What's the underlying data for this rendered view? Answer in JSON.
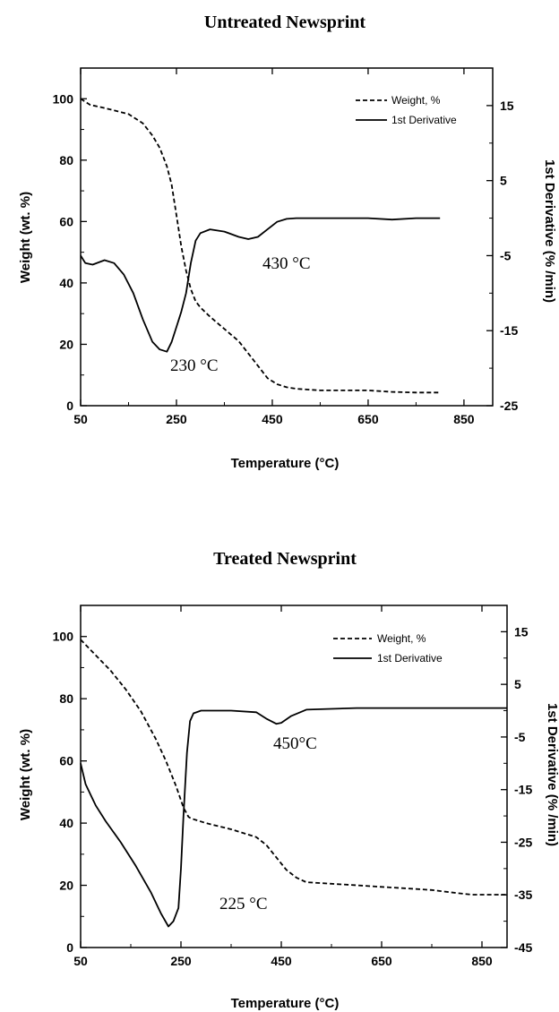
{
  "chart_data": [
    {
      "type": "line",
      "title": "Untreated Newsprint",
      "xlabel": "Temperature (°C)",
      "ylabel": "Weight (wt. %)",
      "y2label": "1st Derivative (% /min)",
      "xlim": [
        50,
        910
      ],
      "ylim": [
        0,
        110
      ],
      "y2lim": [
        -25,
        20
      ],
      "xticks": [
        50,
        250,
        450,
        650,
        850
      ],
      "yticks": [
        0,
        20,
        40,
        60,
        80,
        100
      ],
      "y2ticks": [
        -25,
        -15,
        -5,
        5,
        15
      ],
      "legend_position": "top-right",
      "grid": false,
      "series": [
        {
          "name": "Weight, %",
          "axis": "left",
          "style": "dashed",
          "x": [
            50,
            70,
            100,
            150,
            180,
            200,
            215,
            230,
            240,
            250,
            260,
            270,
            280,
            290,
            300,
            320,
            350,
            380,
            400,
            420,
            440,
            460,
            480,
            500,
            550,
            600,
            650,
            700,
            750,
            800
          ],
          "y": [
            100,
            98,
            97,
            95,
            92,
            88,
            84,
            78,
            72,
            62,
            52,
            44,
            38,
            34,
            32,
            29,
            25,
            21,
            17,
            13,
            9,
            7,
            6,
            5.5,
            5,
            5,
            5,
            4.5,
            4.3,
            4.3
          ]
        },
        {
          "name": "1st Derivative",
          "axis": "right",
          "style": "solid",
          "x": [
            50,
            60,
            75,
            100,
            120,
            140,
            160,
            180,
            200,
            215,
            230,
            240,
            250,
            260,
            270,
            280,
            290,
            300,
            320,
            350,
            380,
            400,
            420,
            440,
            460,
            480,
            500,
            550,
            600,
            650,
            700,
            750,
            800
          ],
          "y": [
            -5,
            -6,
            -6.2,
            -5.6,
            -6,
            -7.5,
            -10,
            -13.5,
            -16.5,
            -17.5,
            -17.8,
            -16.5,
            -14.5,
            -12.5,
            -10,
            -6,
            -3,
            -2,
            -1.5,
            -1.8,
            -2.5,
            -2.8,
            -2.5,
            -1.5,
            -0.5,
            -0.1,
            0,
            0,
            0,
            0,
            -0.2,
            0,
            0
          ]
        }
      ],
      "annotations": [
        "230 °C",
        "430 °C"
      ]
    },
    {
      "type": "line",
      "title": "Treated Newsprint",
      "xlabel": "Temperature (°C)",
      "ylabel": "Weight (wt. %)",
      "y2label": "1st Derivative (% /min)",
      "xlim": [
        50,
        900
      ],
      "ylim": [
        0,
        110
      ],
      "y2lim": [
        -45,
        20
      ],
      "xticks": [
        50,
        250,
        450,
        650,
        850
      ],
      "yticks": [
        0,
        20,
        40,
        60,
        80,
        100
      ],
      "y2ticks": [
        -45,
        -35,
        -25,
        -15,
        -5,
        5,
        15
      ],
      "legend_position": "top-right",
      "grid": false,
      "series": [
        {
          "name": "Weight, %",
          "axis": "left",
          "style": "dashed",
          "x": [
            50,
            80,
            110,
            140,
            170,
            200,
            220,
            240,
            255,
            265,
            270,
            280,
            300,
            350,
            400,
            420,
            440,
            460,
            480,
            500,
            550,
            600,
            650,
            700,
            750,
            800,
            830,
            850,
            880,
            900
          ],
          "y": [
            99,
            94,
            89,
            83,
            76,
            67,
            60,
            52,
            45,
            42,
            41.5,
            41,
            40,
            38,
            35.5,
            33,
            29,
            25,
            22.5,
            21,
            20.5,
            20,
            19.5,
            19,
            18.5,
            17.5,
            17,
            17,
            17,
            17
          ]
        },
        {
          "name": "1st Derivative",
          "axis": "right",
          "style": "solid",
          "x": [
            50,
            60,
            80,
            100,
            130,
            160,
            190,
            210,
            225,
            235,
            245,
            250,
            255,
            262,
            268,
            275,
            290,
            310,
            350,
            400,
            420,
            440,
            450,
            470,
            500,
            600,
            700,
            800,
            850,
            900
          ],
          "y": [
            -10,
            -14,
            -18,
            -21,
            -25,
            -29.5,
            -34.5,
            -38.5,
            -41,
            -40,
            -37.5,
            -30,
            -20,
            -8,
            -2,
            -0.5,
            0,
            0,
            0,
            -0.3,
            -1.5,
            -2.5,
            -2.3,
            -1,
            0.2,
            0.5,
            0.5,
            0.5,
            0.5,
            0.5
          ]
        }
      ],
      "annotations": [
        "225 °C",
        "450°C"
      ]
    }
  ]
}
